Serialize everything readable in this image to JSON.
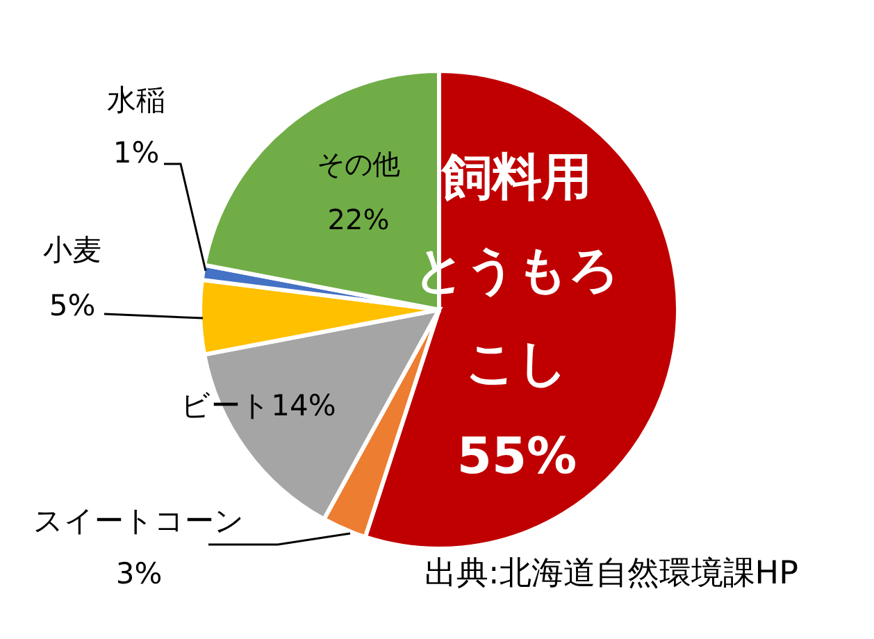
{
  "chart_data": {
    "type": "pie",
    "categories": [
      "飼料用とうもろこし",
      "スイートコーン",
      "ビート",
      "小麦",
      "水稲",
      "その他"
    ],
    "values": [
      55,
      3,
      14,
      5,
      1,
      22
    ],
    "colors": [
      "#c00000",
      "#ed7d31",
      "#a5a5a5",
      "#ffc000",
      "#4472c4",
      "#70ad47"
    ],
    "value_labels": [
      "55%",
      "3%",
      "14%",
      "5%",
      "1%",
      "22%"
    ],
    "annotations": [
      "出典:北海道自然環境課HP"
    ]
  }
}
